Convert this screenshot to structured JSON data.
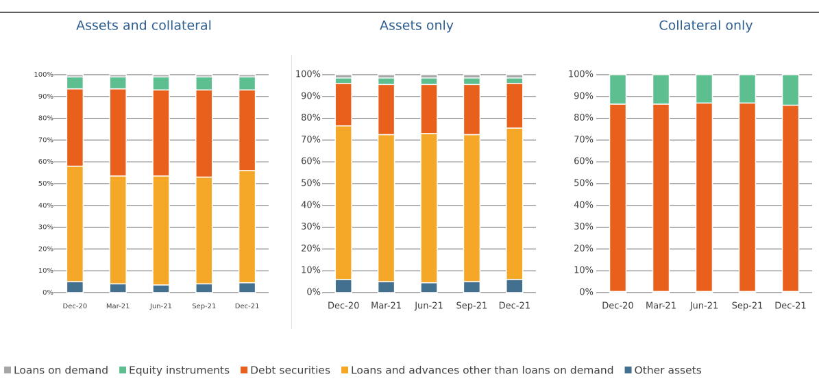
{
  "chart_data": [
    {
      "type": "bar",
      "stacked": true,
      "title": "Assets and collateral",
      "categories": [
        "Dec-20",
        "Mar-21",
        "Jun-21",
        "Sep-21",
        "Dec-21"
      ],
      "series": [
        {
          "name": "Loans on demand",
          "color": "#a6a6a6",
          "values": [
            1,
            1,
            1,
            1,
            1
          ]
        },
        {
          "name": "Equity instruments",
          "color": "#5dbf8f",
          "values": [
            5.5,
            5.5,
            6,
            6,
            6
          ]
        },
        {
          "name": "Debt securities",
          "color": "#e8601c",
          "values": [
            35.5,
            40,
            39.5,
            40,
            37
          ]
        },
        {
          "name": "Loans and advances other than loans on demand",
          "color": "#f5a828",
          "values": [
            53,
            49.5,
            50,
            49,
            51.5
          ]
        },
        {
          "name": "Other assets",
          "color": "#44708f",
          "values": [
            5,
            4,
            3.5,
            4,
            4.5
          ]
        }
      ],
      "ylim": [
        0,
        100
      ],
      "yticks": [
        {
          "value": 0,
          "label": "0%"
        },
        {
          "value": 10,
          "label": "10%"
        },
        {
          "value": 20,
          "label": "20%"
        },
        {
          "value": 30,
          "label": "30%"
        },
        {
          "value": 40,
          "label": "40%"
        },
        {
          "value": 50,
          "label": "50%"
        },
        {
          "value": 60,
          "label": "60%"
        },
        {
          "value": 70,
          "label": "70%"
        },
        {
          "value": 80,
          "label": "80%"
        },
        {
          "value": 90,
          "label": "90%"
        },
        {
          "value": 100,
          "label": "100%"
        }
      ],
      "grid": true
    },
    {
      "type": "bar",
      "stacked": true,
      "title": "Assets only",
      "categories": [
        "Dec-20",
        "Mar-21",
        "Jun-21",
        "Sep-21",
        "Dec-21"
      ],
      "series": [
        {
          "name": "Loans on demand",
          "color": "#a6a6a6",
          "values": [
            1.5,
            1.5,
            1.5,
            1.5,
            1.5
          ]
        },
        {
          "name": "Equity instruments",
          "color": "#5dbf8f",
          "values": [
            2.5,
            3,
            3,
            3,
            2.5
          ]
        },
        {
          "name": "Debt securities",
          "color": "#e8601c",
          "values": [
            19.5,
            23,
            22.5,
            23,
            20.5
          ]
        },
        {
          "name": "Loans and advances other than loans on demand",
          "color": "#f5a828",
          "values": [
            70.5,
            67.5,
            68.5,
            67.5,
            69.5
          ]
        },
        {
          "name": "Other assets",
          "color": "#44708f",
          "values": [
            6,
            5,
            4.5,
            5,
            6
          ]
        }
      ],
      "ylim": [
        0,
        100
      ],
      "yticks": [
        {
          "value": 0,
          "label": "0%"
        },
        {
          "value": 10,
          "label": "10%"
        },
        {
          "value": 20,
          "label": "20%"
        },
        {
          "value": 30,
          "label": "30%"
        },
        {
          "value": 40,
          "label": "40%"
        },
        {
          "value": 50,
          "label": "50%"
        },
        {
          "value": 60,
          "label": "60%"
        },
        {
          "value": 70,
          "label": "70%"
        },
        {
          "value": 80,
          "label": "80%"
        },
        {
          "value": 90,
          "label": "90%"
        },
        {
          "value": 100,
          "label": "100%"
        }
      ],
      "grid": true
    },
    {
      "type": "bar",
      "stacked": true,
      "title": "Collateral only",
      "categories": [
        "Dec-20",
        "Mar-21",
        "Jun-21",
        "Sep-21",
        "Dec-21"
      ],
      "series": [
        {
          "name": "Loans on demand",
          "color": "#a6a6a6",
          "values": [
            0,
            0,
            0,
            0,
            0
          ]
        },
        {
          "name": "Equity instruments",
          "color": "#5dbf8f",
          "values": [
            13.5,
            13.5,
            13,
            13,
            14
          ]
        },
        {
          "name": "Debt securities",
          "color": "#e8601c",
          "values": [
            86,
            86,
            86.5,
            86.5,
            85.5
          ]
        },
        {
          "name": "Loans and advances other than loans on demand",
          "color": "#f5a828",
          "values": [
            0,
            0,
            0,
            0,
            0
          ]
        },
        {
          "name": "Other assets",
          "color": "#44708f",
          "values": [
            0.5,
            0.5,
            0.5,
            0.5,
            0.5
          ]
        }
      ],
      "ylim": [
        0,
        100
      ],
      "yticks": [
        {
          "value": 0,
          "label": "0%"
        },
        {
          "value": 10,
          "label": "10%"
        },
        {
          "value": 20,
          "label": "20%"
        },
        {
          "value": 30,
          "label": "30%"
        },
        {
          "value": 40,
          "label": "40%"
        },
        {
          "value": 50,
          "label": "50%"
        },
        {
          "value": 60,
          "label": "60%"
        },
        {
          "value": 70,
          "label": "70%"
        },
        {
          "value": 80,
          "label": "80%"
        },
        {
          "value": 90,
          "label": "90%"
        },
        {
          "value": 100,
          "label": "100%"
        }
      ],
      "grid": true
    }
  ]
}
